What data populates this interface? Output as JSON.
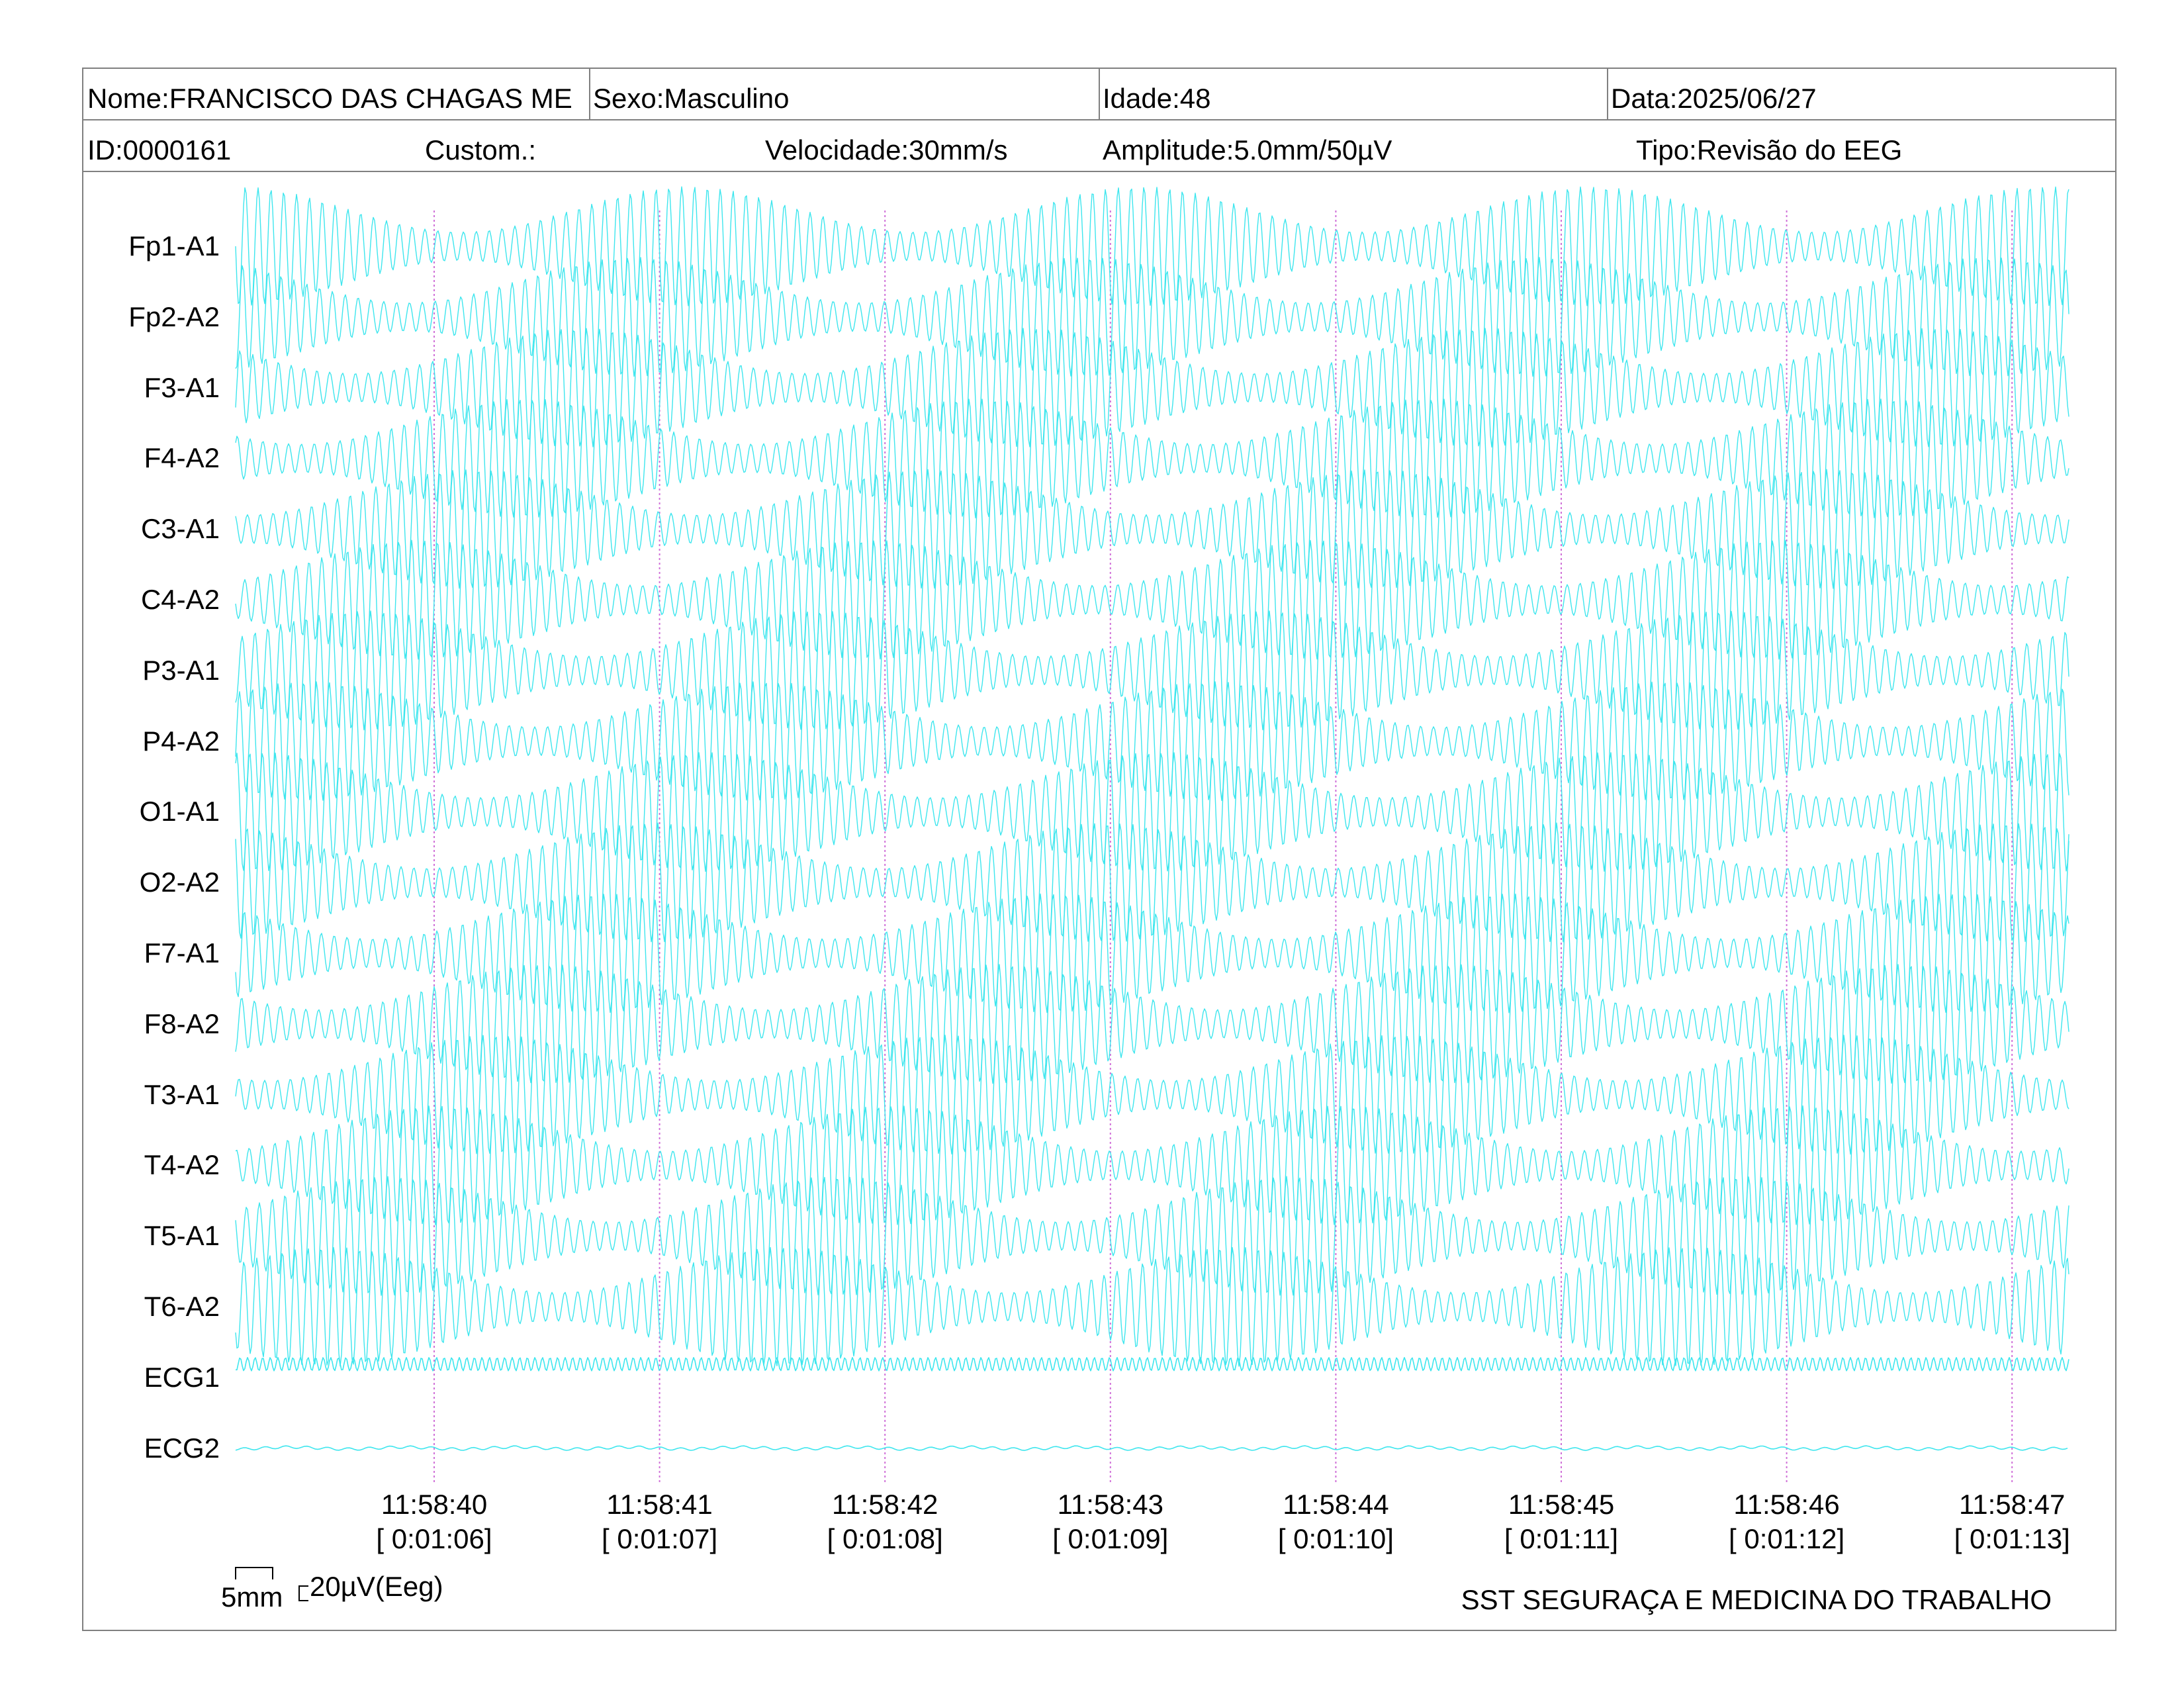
{
  "header": {
    "name": "Nome:FRANCISCO DAS CHAGAS ME",
    "sex": "Sexo:Masculino",
    "age": "Idade:48",
    "date": "Data:2025/06/27",
    "id": "ID:0000161",
    "custom": "Custom.:",
    "speed": "Velocidade:30mm/s",
    "amplitude": "Amplitude:5.0mm/50µV",
    "type": "Tipo:Revisão do EEG"
  },
  "channels": [
    "Fp1-A1",
    "Fp2-A2",
    "F3-A1",
    "F4-A2",
    "C3-A1",
    "C4-A2",
    "P3-A1",
    "P4-A2",
    "O1-A1",
    "O2-A2",
    "F7-A1",
    "F8-A2",
    "T3-A1",
    "T4-A2",
    "T5-A1",
    "T6-A2",
    "ECG1",
    "ECG2"
  ],
  "time_marks": [
    {
      "clock": "11:58:40",
      "elapsed": "[ 0:01:06]"
    },
    {
      "clock": "11:58:41",
      "elapsed": "[ 0:01:07]"
    },
    {
      "clock": "11:58:42",
      "elapsed": "[ 0:01:08]"
    },
    {
      "clock": "11:58:43",
      "elapsed": "[ 0:01:09]"
    },
    {
      "clock": "11:58:44",
      "elapsed": "[ 0:01:10]"
    },
    {
      "clock": "11:58:45",
      "elapsed": "[ 0:01:11]"
    },
    {
      "clock": "11:58:46",
      "elapsed": "[ 0:01:12]"
    },
    {
      "clock": "11:58:47",
      "elapsed": "[ 0:01:13]"
    }
  ],
  "scale": {
    "horizontal_label": "5mm",
    "vertical_label": "20µV(Eeg)"
  },
  "footer": {
    "company": "SST SEGURAÇA E MEDICINA DO TRABALHO"
  },
  "colors": {
    "trace": "#3ee6ee",
    "time_marker": "#d070d8",
    "border": "#808080"
  }
}
